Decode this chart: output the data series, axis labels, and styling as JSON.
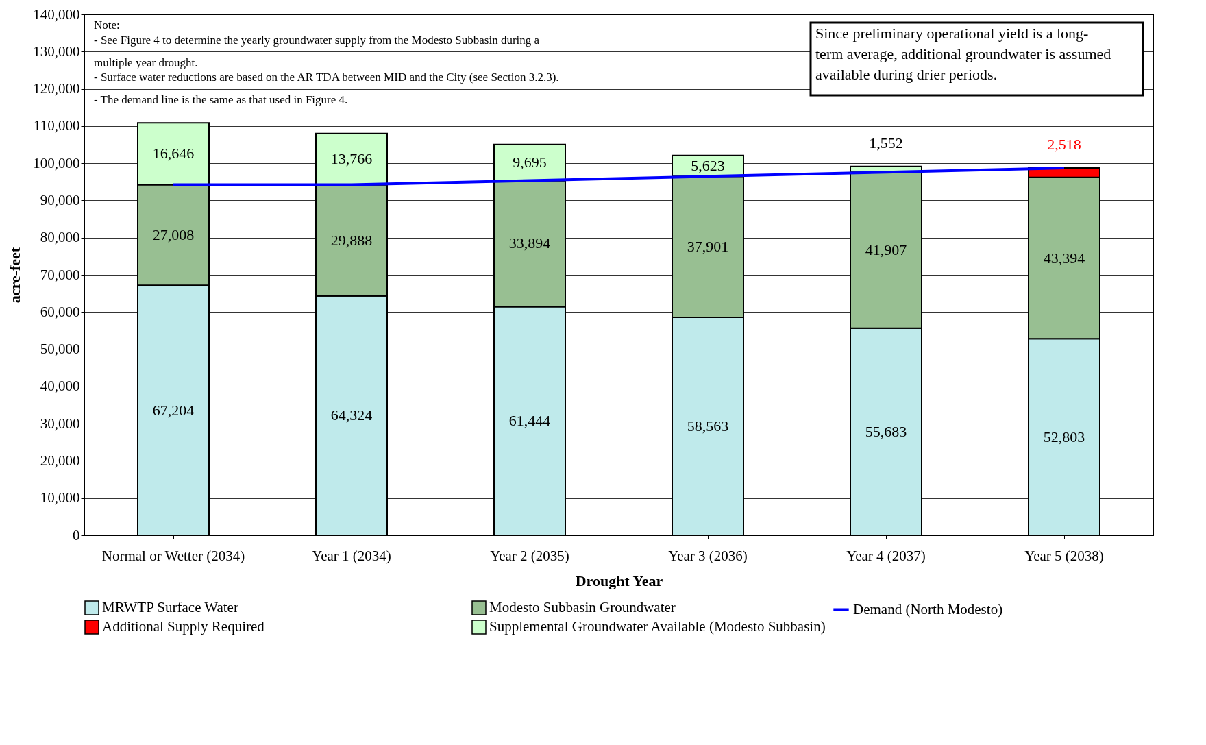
{
  "chart_data": {
    "type": "bar",
    "stacked": true,
    "xlabel": "Drought Year",
    "ylabel": "acre-feet",
    "categories": [
      "Normal or Wetter (2034)",
      "Year 1 (2034)",
      "Year 2 (2035)",
      "Year 3 (2036)",
      "Year 4 (2037)",
      "Year 5 (2038)"
    ],
    "series": [
      {
        "name": "MRWTP Surface Water",
        "color": "#bfeaeb",
        "values": [
          67204,
          64324,
          61444,
          58563,
          55683,
          52803
        ],
        "value_labels": [
          "67,204",
          "64,324",
          "61,444",
          "58,563",
          "55,683",
          "52,803"
        ]
      },
      {
        "name": "Modesto Subbasin Groundwater",
        "color": "#98bf92",
        "values": [
          27008,
          29888,
          33894,
          37901,
          41907,
          43394
        ],
        "value_labels": [
          "27,008",
          "29,888",
          "33,894",
          "37,901",
          "41,907",
          "43,394"
        ]
      },
      {
        "name": "Additional Supply Required",
        "color": "#ff0000",
        "values": [
          null,
          null,
          null,
          null,
          null,
          2518
        ],
        "value_labels": [
          null,
          null,
          null,
          null,
          null,
          "2,518"
        ]
      },
      {
        "name": "Supplemental Groundwater Available (Modesto Subbasin)",
        "color": "#ccffcc",
        "values": [
          16646,
          13766,
          9695,
          5623,
          1552,
          null
        ],
        "value_labels": [
          "16,646",
          "13,766",
          "9,695",
          "5,623",
          "1,552",
          null
        ]
      },
      {
        "name": "Demand (North Modesto)",
        "type": "line",
        "color": "#0000ff",
        "values": [
          94212,
          94212,
          95338,
          96464,
          97590,
          98715
        ]
      }
    ],
    "ylim": [
      0,
      140000
    ],
    "yticks": [
      0,
      {
        "value": 10000,
        "label": "10,000"
      },
      {
        "value": 20000,
        "label": "20,000"
      },
      {
        "value": 30000,
        "label": "30,000"
      },
      {
        "value": 40000,
        "label": "40,000"
      },
      {
        "value": 50000,
        "label": "50,000"
      },
      {
        "value": 60000,
        "label": "60,000"
      },
      {
        "value": 70000,
        "label": "70,000"
      },
      {
        "value": 80000,
        "label": "80,000"
      },
      {
        "value": 90000,
        "label": "90,000"
      },
      {
        "value": 100000,
        "label": "100,000"
      },
      {
        "value": 110000,
        "label": "110,000"
      },
      {
        "value": 120000,
        "label": "120,000"
      },
      {
        "value": 130000,
        "label": "130,000"
      },
      {
        "value": 140000,
        "label": "140,000"
      }
    ],
    "grid": "y",
    "legend": "bottom",
    "annotations": [
      "Note:\n- See Figure 4 to determine the yearly groundwater supply from the Modesto Subbasin during a\n   multiple year drought.\n- Surface water reductions are based on the AR TDA between MID and the City (see Section 3.2.3).\n- The demand line is the same as that used in Figure 4.",
      "Since preliminary operational yield is a long-\nterm average, additional groundwater is assumed\navailable during drier periods."
    ]
  }
}
